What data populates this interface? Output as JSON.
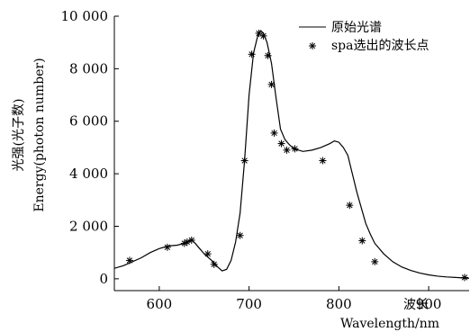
{
  "chart_data": {
    "type": "line",
    "title": "",
    "xlabel_cn": "波长",
    "xlabel_en": "Wavelength/nm",
    "ylabel_cn": "光强(光子数)",
    "ylabel_en": "Energy(photon number)",
    "xlim": [
      550,
      945
    ],
    "ylim": [
      -450,
      10000
    ],
    "xticks": [
      600,
      700,
      800,
      900
    ],
    "xtick_labels": [
      "600",
      "700",
      "800",
      "900"
    ],
    "yticks": [
      0,
      2000,
      4000,
      6000,
      8000,
      10000
    ],
    "ytick_labels": [
      "0",
      "2 000",
      "4 000",
      "6 000",
      "8 000",
      "10 000"
    ],
    "legend_position": "top-right",
    "legend": [
      {
        "label": "原始光谱",
        "marker": "line"
      },
      {
        "label": "spa选出的波长点",
        "marker": "asterisk"
      }
    ],
    "series": [
      {
        "name": "原始光谱",
        "style": "line",
        "x": [
          550,
          560,
          570,
          580,
          590,
          600,
          610,
          620,
          628,
          632,
          636,
          640,
          645,
          650,
          655,
          660,
          665,
          670,
          675,
          680,
          685,
          690,
          695,
          700,
          705,
          710,
          713,
          716,
          720,
          725,
          730,
          735,
          740,
          745,
          750,
          760,
          770,
          780,
          790,
          795,
          800,
          805,
          810,
          815,
          820,
          825,
          830,
          835,
          840,
          850,
          860,
          870,
          880,
          890,
          900,
          910,
          920,
          930,
          940,
          945
        ],
        "y": [
          400,
          500,
          650,
          800,
          1000,
          1150,
          1250,
          1280,
          1350,
          1420,
          1480,
          1350,
          1150,
          950,
          800,
          650,
          450,
          300,
          360,
          700,
          1400,
          2500,
          4500,
          7000,
          8600,
          9300,
          9450,
          9350,
          9000,
          8200,
          6900,
          5700,
          5300,
          5100,
          4950,
          4850,
          4900,
          5000,
          5150,
          5250,
          5200,
          5000,
          4700,
          4000,
          3300,
          2700,
          2100,
          1700,
          1350,
          950,
          650,
          450,
          320,
          220,
          150,
          100,
          70,
          50,
          30,
          20
        ]
      },
      {
        "name": "spa选出的波长点",
        "style": "asterisk",
        "x": [
          567,
          609,
          628,
          631,
          636,
          654,
          661,
          690,
          695,
          703,
          711,
          716,
          721,
          725,
          728,
          736,
          742,
          751,
          782,
          812,
          826,
          840,
          940
        ],
        "y": [
          700,
          1200,
          1350,
          1400,
          1470,
          950,
          550,
          1650,
          4500,
          8550,
          9350,
          9250,
          8500,
          7400,
          5550,
          5150,
          4900,
          4950,
          4500,
          2800,
          1450,
          650,
          50
        ]
      }
    ]
  }
}
